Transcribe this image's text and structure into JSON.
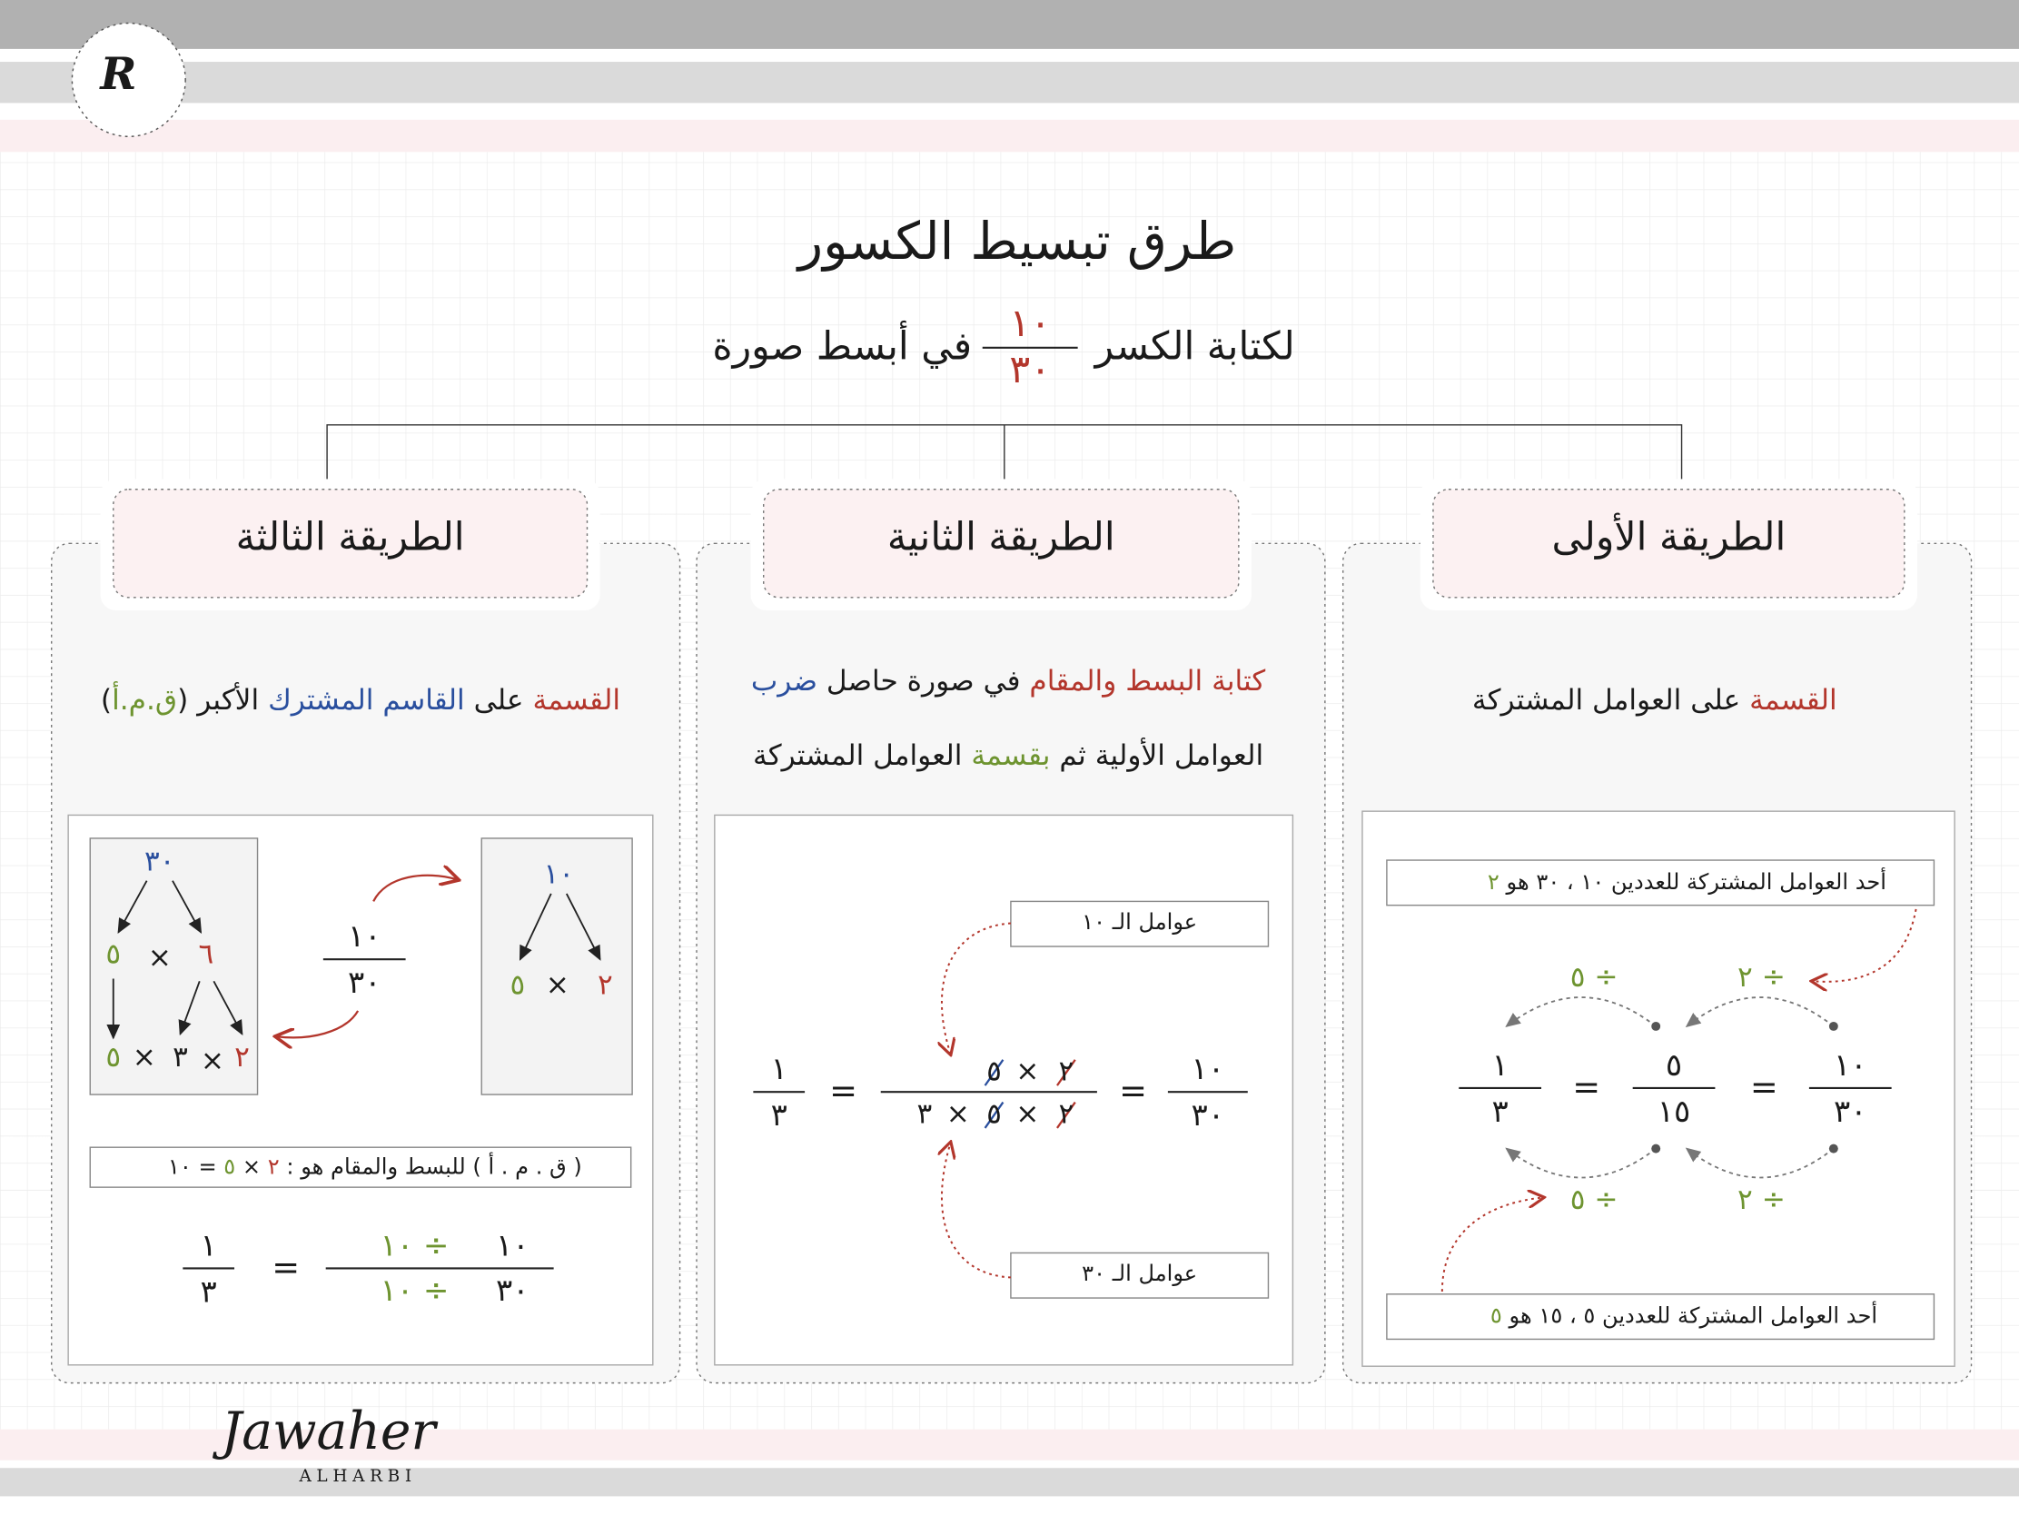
{
  "header": {
    "logo_letter": "R",
    "title": "طرق تبسيط الكسور",
    "subtitle": {
      "before": "لكتابة الكسر",
      "numerator": "١٠",
      "denominator": "٣٠",
      "after": "في أبسط صورة"
    }
  },
  "methods": [
    {
      "heading": "الطريقة الأولى",
      "description": [
        "القسمة",
        "على العوامل المشتركة"
      ],
      "note_top": {
        "text": "أحد العوامل المشتركة للعددين ١٠ ، ٣٠ هو",
        "factor": "٢"
      },
      "note_bottom": {
        "text": "أحد العوامل المشتركة للعددين ٥ ، ١٥ هو",
        "factor": "٥"
      },
      "fractions": [
        {
          "numerator": "١٠",
          "denominator": "٣٠"
        },
        {
          "numerator": "٥",
          "denominator": "١٥"
        },
        {
          "numerator": "١",
          "denominator": "٣"
        }
      ],
      "equals": "=",
      "steps": [
        "÷ ٢",
        "÷ ٥"
      ]
    },
    {
      "heading": "الطريقة الثانية",
      "description": [
        [
          "كتابة البسط والمقام",
          "في صورة حاصل",
          "ضرب"
        ],
        [
          "العوامل الأولية ثم",
          "بقسمة",
          "العوامل المشتركة"
        ]
      ],
      "callouts": [
        "عوامل الـ ١٠",
        "عوامل الـ ٣٠"
      ],
      "start": {
        "numerator": "١٠",
        "denominator": "٣٠"
      },
      "numerator_factors": [
        "٢",
        "٥"
      ],
      "denominator_factors": [
        "٢",
        "٥",
        "٣"
      ],
      "times": "×",
      "equals": "=",
      "result": {
        "numerator": "١",
        "denominator": "٣"
      }
    },
    {
      "heading": "الطريقة الثالثة",
      "description": [
        "القسمة",
        "على",
        "القاسم المشترك",
        "الأكبر (",
        "ق.م.أ",
        ")"
      ],
      "tree_30": {
        "root": "٣٠",
        "branches": [
          "٦",
          "٥"
        ],
        "leaves": [
          "٢",
          "٣",
          "٥"
        ]
      },
      "tree_10": {
        "root": "١٠",
        "branches": [
          "٢",
          "٥"
        ]
      },
      "fraction": {
        "numerator": "١٠",
        "denominator": "٣٠"
      },
      "times": "×",
      "gcf_note": {
        "text": "( ق . م . أ )  للبسط والمقام هو :",
        "factors": [
          "٢",
          "٥"
        ],
        "result": "= ١٠"
      },
      "final": {
        "numerator": "١٠",
        "denominator": "٣٠",
        "divisor": "÷ ١٠",
        "equals": "=",
        "result": {
          "numerator": "١",
          "denominator": "٣"
        }
      }
    }
  ],
  "footer": {
    "signature": "Jawaher",
    "name": "ALHARBI"
  }
}
